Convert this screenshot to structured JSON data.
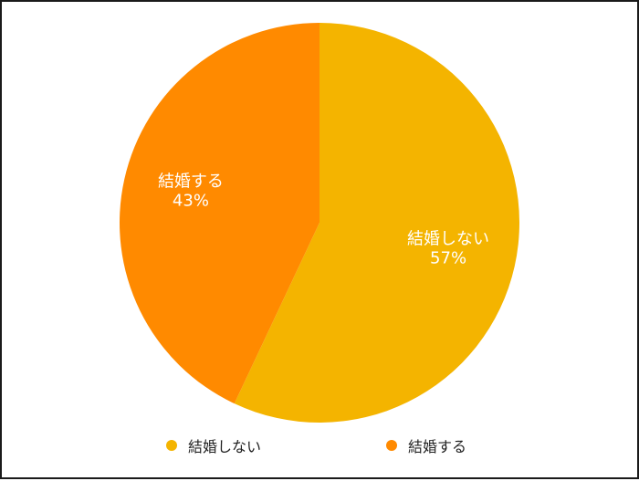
{
  "chart_data": {
    "type": "pie",
    "slices": [
      {
        "label": "結婚しない",
        "value": 57,
        "percent_label": "57%",
        "color": "#f4b400"
      },
      {
        "label": "結婚する",
        "value": 43,
        "percent_label": "43%",
        "color": "#ff8a00"
      }
    ],
    "legend_position": "bottom"
  }
}
